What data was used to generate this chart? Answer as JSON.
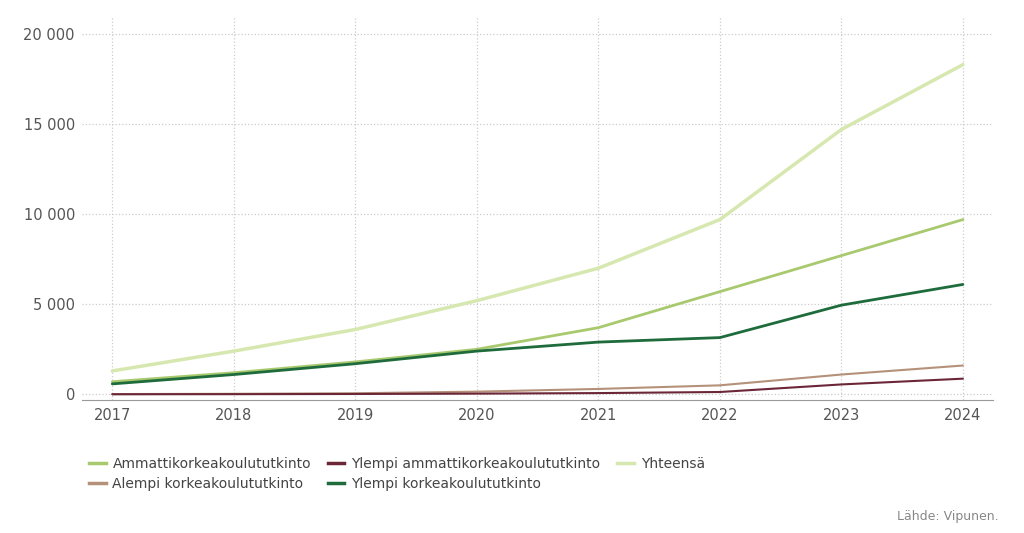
{
  "years": [
    2017,
    2018,
    2019,
    2020,
    2021,
    2022,
    2023,
    2024
  ],
  "series": {
    "Ammattikorkeakoulututkinto": [
      700,
      1200,
      1800,
      2500,
      3700,
      5700,
      7700,
      9700
    ],
    "Alempi korkeakoulututkinto": [
      15,
      30,
      60,
      150,
      300,
      500,
      1100,
      1600
    ],
    "Ylempi ammattikorkeakoulututkinto": [
      5,
      10,
      20,
      40,
      70,
      130,
      550,
      870
    ],
    "Ylempi korkeakoulututkinto": [
      580,
      1100,
      1700,
      2400,
      2900,
      3150,
      4950,
      6100
    ],
    "Yhteensä": [
      1300,
      2400,
      3600,
      5200,
      7000,
      9700,
      14700,
      18300
    ]
  },
  "colors": {
    "Ammattikorkeakoulututkinto": "#a8c96e",
    "Alempi korkeakoulututkinto": "#b5917a",
    "Ylempi ammattikorkeakoulututkinto": "#6b2737",
    "Ylempi korkeakoulututkinto": "#1e6b3c",
    "Yhteensä": "#d6e8b0"
  },
  "line_widths": {
    "Ammattikorkeakoulututkinto": 2.0,
    "Alempi korkeakoulututkinto": 1.5,
    "Ylempi ammattikorkeakoulututkinto": 1.5,
    "Ylempi korkeakoulututkinto": 2.0,
    "Yhteensä": 2.5
  },
  "yticks": [
    0,
    5000,
    10000,
    15000,
    20000
  ],
  "ylim": [
    -300,
    21000
  ],
  "xlim_left": 2016.75,
  "xlim_right": 2024.25,
  "background_color": "#ffffff",
  "grid_color": "#cccccc",
  "source_text": "Lähde: Vipunen.",
  "legend_row1": [
    "Ammattikorkeakoulututkinto",
    "Alempi korkeakoulututkinto",
    "Ylempi ammattikorkeakoulututkinto"
  ],
  "legend_row2": [
    "Ylempi korkeakoulututkinto",
    "Yhteensä"
  ],
  "series_order": [
    "Ammattikorkeakoulututkinto",
    "Alempi korkeakoulututkinto",
    "Ylempi ammattikorkeakoulututkinto",
    "Ylempi korkeakoulututkinto",
    "Yhteensä"
  ]
}
